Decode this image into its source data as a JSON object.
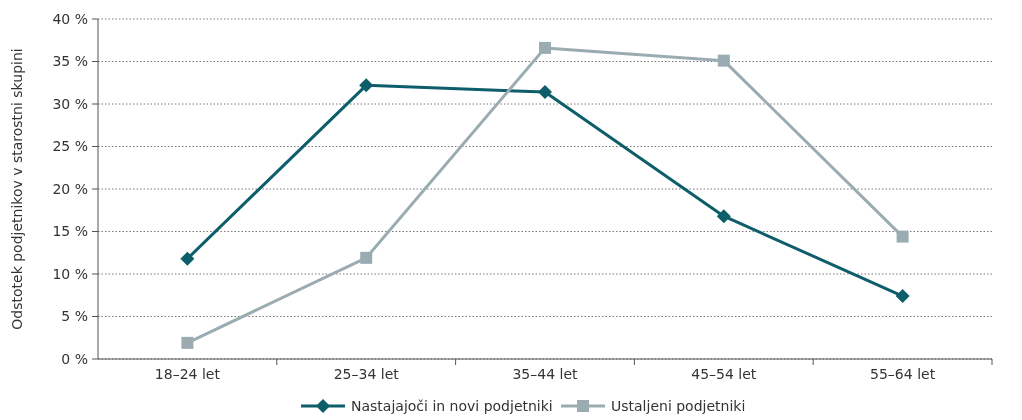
{
  "chart_data": {
    "type": "line",
    "ylabel": "Odstotek podjetnikov v starostni skupini",
    "categories": [
      "18–24 let",
      "25–34 let",
      "35–44 let",
      "45–54 let",
      "55–64 let"
    ],
    "series": [
      {
        "name": "Nastajajoči in novi podjetniki",
        "color": "#0d5e6a",
        "values": [
          11.8,
          32.2,
          31.4,
          16.8,
          7.4
        ],
        "marker": "diamond"
      },
      {
        "name": "Ustaljeni podjetniki",
        "color": "#9aacb2",
        "values": [
          1.9,
          11.9,
          36.6,
          35.1,
          14.4
        ],
        "marker": "square"
      }
    ],
    "ylim": [
      0,
      40
    ],
    "yticks": [
      {
        "value": 0,
        "label": "0 %"
      },
      {
        "value": 5,
        "label": "5 %"
      },
      {
        "value": 10,
        "label": "10 %"
      },
      {
        "value": 15,
        "label": "15 %"
      },
      {
        "value": 20,
        "label": "20 %"
      },
      {
        "value": 25,
        "label": "25 %"
      },
      {
        "value": 30,
        "label": "30 %"
      },
      {
        "value": 35,
        "label": "35 %"
      },
      {
        "value": 40,
        "label": "40 %"
      }
    ],
    "grid": "y",
    "legend": "bottom",
    "line_style": "solid"
  }
}
